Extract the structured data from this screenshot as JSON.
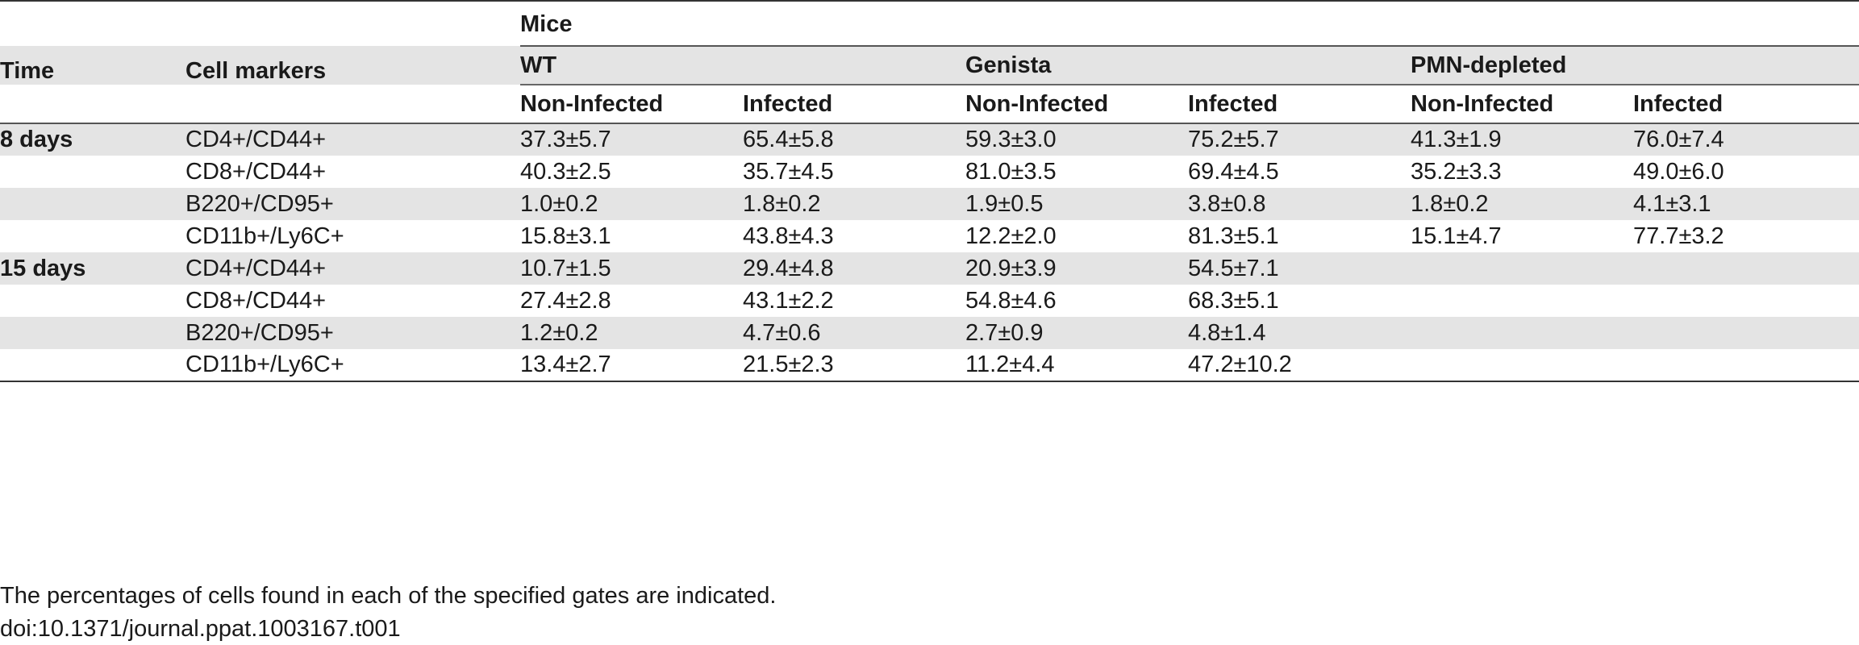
{
  "table": {
    "super_header": "Mice",
    "col_time": "Time",
    "col_markers": "Cell markers",
    "groups": [
      "WT",
      "Genista",
      "PMN-depleted"
    ],
    "subheaders": [
      "Non-Infected",
      "Infected",
      "Non-Infected",
      "Infected",
      "Non-Infected",
      "Infected"
    ],
    "rows": [
      {
        "time": "8 days",
        "marker": "CD4+/CD44+",
        "values": [
          "37.3±5.7",
          "65.4±5.8",
          "59.3±3.0",
          "75.2±5.7",
          "41.3±1.9",
          "76.0±7.4"
        ]
      },
      {
        "time": "",
        "marker": "CD8+/CD44+",
        "values": [
          "40.3±2.5",
          "35.7±4.5",
          "81.0±3.5",
          "69.4±4.5",
          "35.2±3.3",
          "49.0±6.0"
        ]
      },
      {
        "time": "",
        "marker": "B220+/CD95+",
        "values": [
          "1.0±0.2",
          "1.8±0.2",
          "1.9±0.5",
          "3.8±0.8",
          "1.8±0.2",
          "4.1±3.1"
        ]
      },
      {
        "time": "",
        "marker": "CD11b+/Ly6C+",
        "values": [
          "15.8±3.1",
          "43.8±4.3",
          "12.2±2.0",
          "81.3±5.1",
          "15.1±4.7",
          "77.7±3.2"
        ]
      },
      {
        "time": "15 days",
        "marker": "CD4+/CD44+",
        "values": [
          "10.7±1.5",
          "29.4±4.8",
          "20.9±3.9",
          "54.5±7.1",
          "",
          ""
        ]
      },
      {
        "time": "",
        "marker": "CD8+/CD44+",
        "values": [
          "27.4±2.8",
          "43.1±2.2",
          "54.8±4.6",
          "68.3±5.1",
          "",
          ""
        ]
      },
      {
        "time": "",
        "marker": "B220+/CD95+",
        "values": [
          "1.2±0.2",
          "4.7±0.6",
          "2.7±0.9",
          "4.8±1.4",
          "",
          ""
        ]
      },
      {
        "time": "",
        "marker": "CD11b+/Ly6C+",
        "values": [
          "13.4±2.7",
          "21.5±2.3",
          "11.2±4.4",
          "47.2±10.2",
          "",
          ""
        ]
      }
    ]
  },
  "footnote": {
    "text": "The percentages of cells found in each of the specified gates are indicated.",
    "doi": "doi:10.1371/journal.ppat.1003167.t001"
  }
}
